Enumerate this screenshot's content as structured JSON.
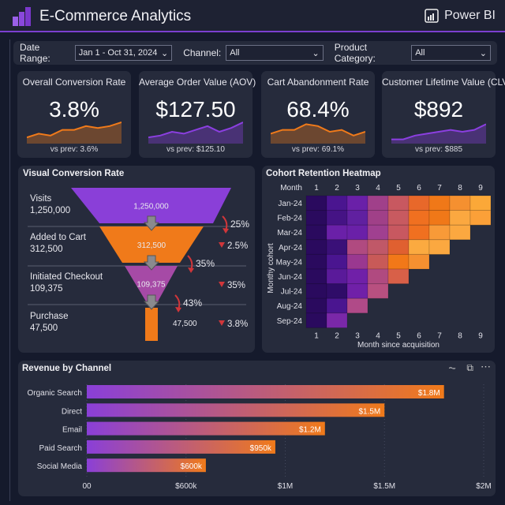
{
  "header": {
    "title": "E-Commerce Analytics",
    "brand": "Power BI"
  },
  "filters": [
    {
      "label": "Date Range:",
      "value": "Jan 1 - Oct 31, 2024"
    },
    {
      "label": "Channel:",
      "value": "All"
    },
    {
      "label": "Product Category:",
      "value": "All"
    }
  ],
  "kpis": [
    {
      "title": "Overall Conversion Rate",
      "value": "3.8%",
      "prev": "vs prev: 3.6%",
      "color": "#f07a1a",
      "spark": [
        2,
        4,
        3,
        6,
        6,
        8,
        7,
        8,
        10
      ]
    },
    {
      "title": "Average Order Value (AOV)",
      "value": "$127.50",
      "prev": "vs prev: $125.10",
      "color": "#8b3fe0",
      "spark": [
        2,
        3,
        5,
        4,
        6,
        8,
        5,
        7,
        10
      ]
    },
    {
      "title": "Cart Abandonment Rate",
      "value": "68.4%",
      "prev": "vs prev: 69.1%",
      "color": "#f07a1a",
      "spark": [
        4,
        6,
        6,
        9,
        8,
        5,
        6,
        3,
        5
      ]
    },
    {
      "title": "Customer Lifetime Value (CLV)",
      "value": "$892",
      "prev": "vs prev: $885",
      "color": "#8b3fe0",
      "spark": [
        1,
        1,
        3,
        4,
        5,
        6,
        5,
        6,
        9
      ]
    }
  ],
  "funnel": {
    "title": "Visual Conversion Rate",
    "stages": [
      {
        "name": "Visits",
        "value": "1,250,000",
        "color": "#8a3fd8"
      },
      {
        "name": "Added to Cart",
        "value": "312,500",
        "color": "#f07a1a"
      },
      {
        "name": "Initiated Checkout",
        "value": "109,375",
        "color": "#a64aa6"
      },
      {
        "name": "Purchase",
        "value": "47,500",
        "color": "#f07a1a"
      }
    ],
    "step_rates": [
      "25%",
      "35%",
      "43%"
    ],
    "changes": [
      "2.5%",
      "35%",
      "3.8%"
    ]
  },
  "heatmap": {
    "title": "Cohort Retention Heatmap",
    "corner": "Month",
    "columns": [
      "1",
      "2",
      "3",
      "4",
      "5",
      "6",
      "7",
      "8",
      "9"
    ],
    "rows": [
      "Jan-24",
      "Feb-24",
      "Mar-24",
      "Apr-24",
      "May-24",
      "Jun-24",
      "Jul-24",
      "Aug-24",
      "Sep-24"
    ],
    "ylabel": "Monthy cohort",
    "xlabel": "Month since acquisition",
    "cells": [
      [
        "#2a0a5e",
        "#4a1590",
        "#6a20a8",
        "#a0408a",
        "#c85860",
        "#e8682a",
        "#f07818",
        "#f59030",
        "#fba838"
      ],
      [
        "#2a0a5e",
        "#451385",
        "#6020a0",
        "#a04088",
        "#c85a60",
        "#f07020",
        "#f07818",
        "#fba840",
        "#fba038"
      ],
      [
        "#2a0a5e",
        "#6a20a8",
        "#6a20a8",
        "#a04090",
        "#c85860",
        "#f07020",
        "#f89a38",
        "#fba840"
      ],
      [
        "#2a0a5e",
        "#3a1078",
        "#b04a80",
        "#c05868",
        "#e06030",
        "#fbaa40",
        "#fba840"
      ],
      [
        "#2a0a5e",
        "#4a1590",
        "#9a3890",
        "#c85a58",
        "#f27818",
        "#f59030"
      ],
      [
        "#2a0a5e",
        "#5a1a9a",
        "#7020a8",
        "#b04a80",
        "#d86048"
      ],
      [
        "#2a0a5e",
        "#2f0c68",
        "#7020a8",
        "#b85080"
      ],
      [
        "#2a0a5e",
        "#4a1590",
        "#b04a88"
      ],
      [
        "#2a0a5e",
        "#7a28a8"
      ]
    ]
  },
  "chart_data": {
    "type": "bar",
    "title": "Revenue by Channel",
    "categories": [
      "Organic Search",
      "Direct",
      "Email",
      "Paid Search",
      "Social Media"
    ],
    "values": [
      1800000,
      1500000,
      1200000,
      950000,
      600000
    ],
    "data_labels": [
      "$1.8M",
      "$1.5M",
      "$1.2M",
      "$950k",
      "$600k"
    ],
    "tick_labels": [
      "00",
      "$600k",
      "$1M",
      "$1.5M",
      "$2M"
    ],
    "xlim": [
      0,
      2000000
    ],
    "orientation": "horizontal",
    "grid": true,
    "colors": [
      "#8a3fd8",
      "#f07a1a"
    ]
  }
}
